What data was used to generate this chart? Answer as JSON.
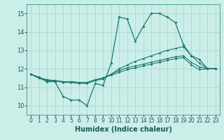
{
  "xlabel": "Humidex (Indice chaleur)",
  "bg_color": "#cceee8",
  "grid_color": "#aad8d0",
  "line_color": "#1a7a6e",
  "xlim": [
    -0.5,
    23.5
  ],
  "ylim": [
    9.5,
    15.5
  ],
  "yticks": [
    10,
    11,
    12,
    13,
    14,
    15
  ],
  "xticks": [
    0,
    1,
    2,
    3,
    4,
    5,
    6,
    7,
    8,
    9,
    10,
    11,
    12,
    13,
    14,
    15,
    16,
    17,
    18,
    19,
    20,
    21,
    22,
    23
  ],
  "series1_y": [
    11.7,
    11.5,
    11.3,
    11.3,
    10.5,
    10.3,
    10.3,
    10.0,
    11.2,
    11.1,
    12.3,
    14.8,
    14.7,
    13.5,
    14.3,
    15.0,
    15.0,
    14.8,
    14.5,
    13.3,
    12.7,
    12.5,
    12.0,
    12.0
  ],
  "series2_y": [
    11.7,
    11.55,
    11.35,
    11.35,
    11.25,
    11.25,
    11.2,
    11.2,
    11.35,
    11.45,
    11.7,
    12.0,
    12.2,
    12.4,
    12.55,
    12.7,
    12.85,
    13.0,
    13.1,
    13.2,
    12.7,
    12.3,
    12.0,
    12.0
  ],
  "series3_y": [
    11.7,
    11.5,
    11.4,
    11.35,
    11.3,
    11.3,
    11.25,
    11.25,
    11.4,
    11.5,
    11.65,
    11.8,
    11.95,
    12.05,
    12.15,
    12.25,
    12.35,
    12.45,
    12.55,
    12.6,
    12.2,
    11.95,
    12.0,
    12.0
  ],
  "series4_y": [
    11.7,
    11.5,
    11.4,
    11.35,
    11.3,
    11.3,
    11.25,
    11.25,
    11.4,
    11.5,
    11.7,
    11.9,
    12.05,
    12.15,
    12.25,
    12.35,
    12.45,
    12.55,
    12.65,
    12.7,
    12.35,
    12.1,
    12.0,
    12.0
  ]
}
